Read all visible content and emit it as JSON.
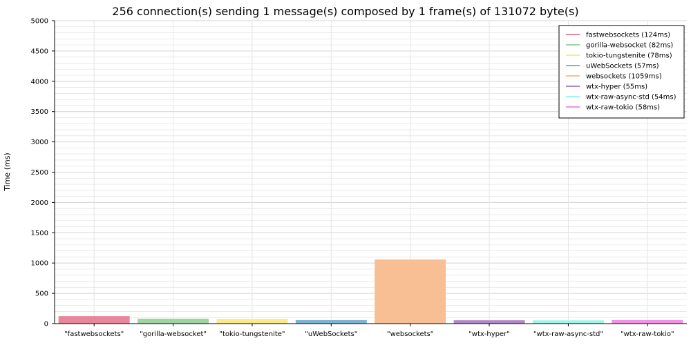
{
  "chart_data": {
    "type": "bar",
    "title": "256 connection(s) sending 1 message(s) composed by 1 frame(s) of 131072 byte(s)",
    "xlabel": "",
    "ylabel": "Time (ms)",
    "ylim": [
      0,
      5000
    ],
    "yticks": [
      0,
      500,
      1000,
      1500,
      2000,
      2500,
      3000,
      3500,
      4000,
      4500,
      5000
    ],
    "grid": true,
    "legend_position": "top-right",
    "categories": [
      "\"fastwebsockets\"",
      "\"gorilla-websocket\"",
      "\"tokio-tungstenite\"",
      "\"uWebSockets\"",
      "\"websockets\"",
      "\"wtx-hyper\"",
      "\"wtx-raw-async-std\"",
      "\"wtx-raw-tokio\""
    ],
    "values": [
      124,
      82,
      78,
      57,
      1059,
      55,
      54,
      58
    ],
    "colors": [
      "#e8879c",
      "#9fd5a0",
      "#fbe98c",
      "#7fb3d4",
      "#f8bf94",
      "#b385c9",
      "#a0f5e6",
      "#ef93e6"
    ],
    "legend": [
      "fastwebsockets (124ms)",
      "gorilla-websocket (82ms)",
      "tokio-tungstenite (78ms)",
      "uWebSockets (57ms)",
      "websockets (1059ms)",
      "wtx-hyper (55ms)",
      "wtx-raw-async-std (54ms)",
      "wtx-raw-tokio (58ms)"
    ]
  }
}
